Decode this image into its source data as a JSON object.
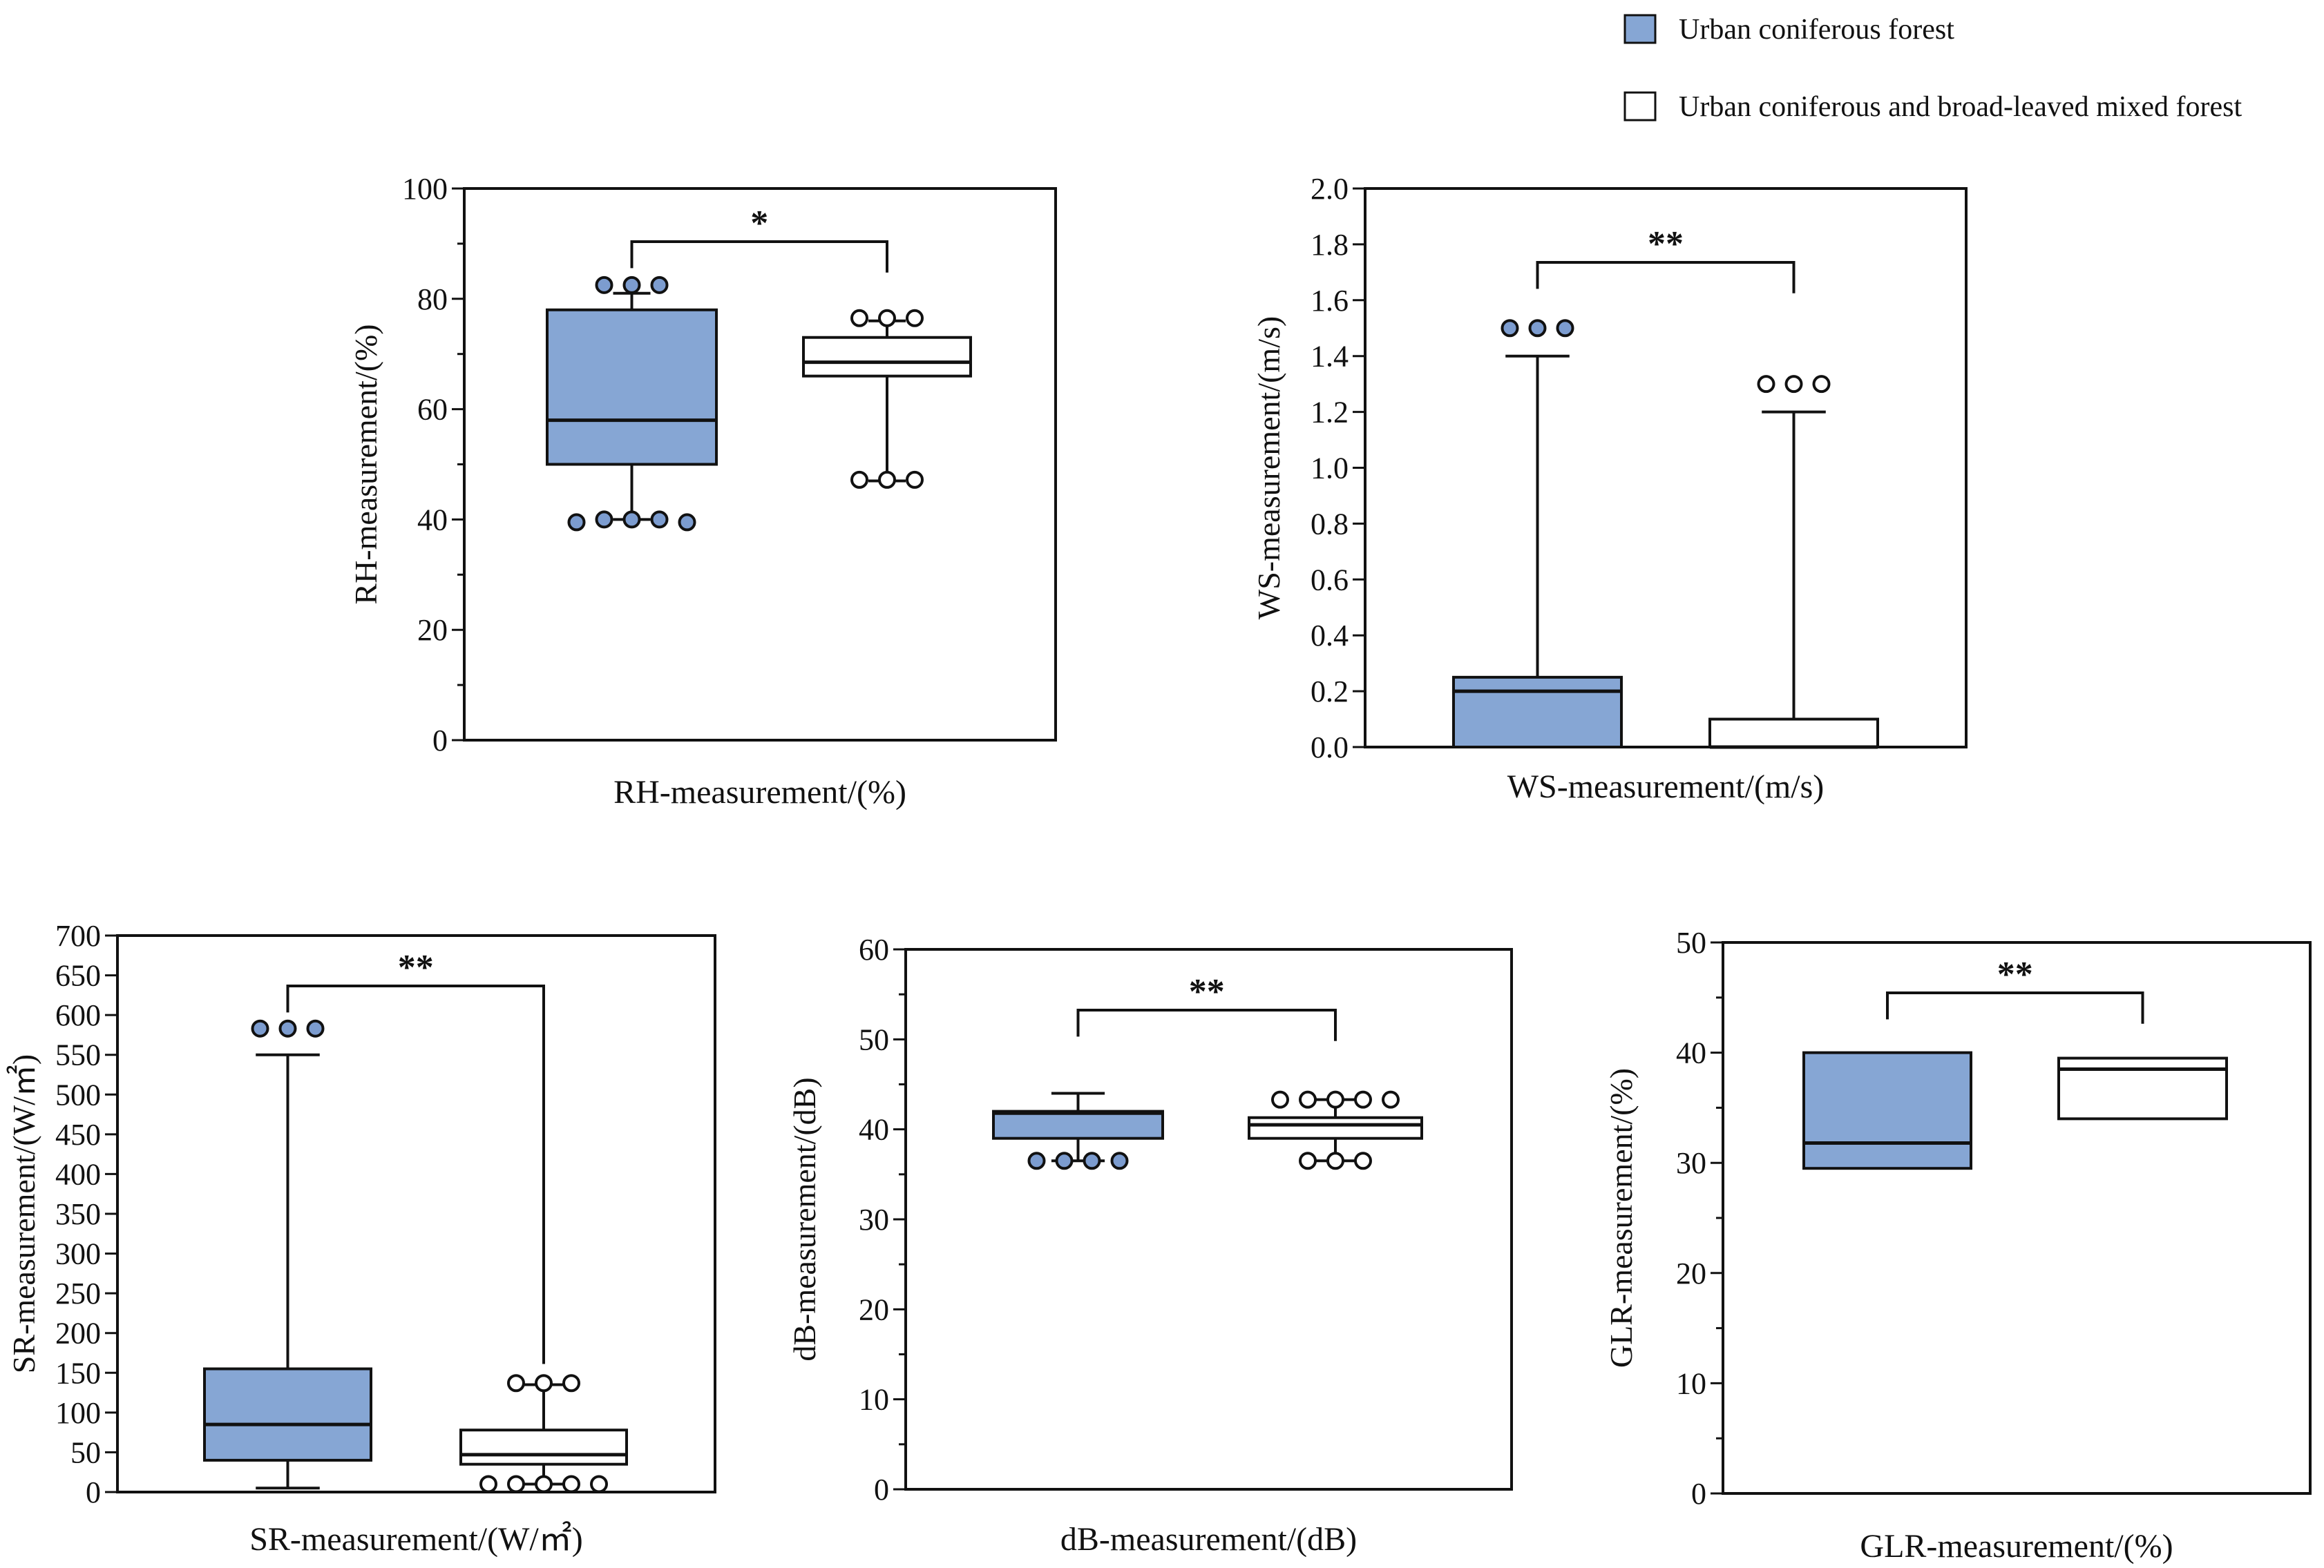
{
  "legend": {
    "items": [
      {
        "label": "Urban coniferous forest",
        "color": "#86a6d4"
      },
      {
        "label": "Urban coniferous and broad-leaved mixed forest",
        "color": "#ffffff"
      }
    ]
  },
  "colors": {
    "blue_fill": "#86a6d4",
    "blue_marker": "#7c9ccf",
    "stroke": "#111111"
  },
  "chart_data": [
    {
      "id": "rh",
      "type": "box",
      "title": "",
      "xlabel": "RH-measurement/(%)",
      "ylabel": "RH-measurement/(%)",
      "ylim": [
        0,
        100
      ],
      "ticks": [
        0,
        20,
        40,
        60,
        80,
        100
      ],
      "minor_step": 10,
      "tick_labels": [
        "0",
        "20",
        "40",
        "60",
        "80",
        "100"
      ],
      "significance": "*",
      "series": [
        {
          "name": "Urban coniferous forest",
          "q1": 50,
          "median": 58,
          "q3": 78,
          "whisker_low": 40,
          "whisker_high": 81,
          "outliers": [
            82.5,
            82.5,
            82.5,
            39.5,
            40,
            40,
            40,
            39.5
          ]
        },
        {
          "name": "Urban coniferous and broad-leaved mixed forest",
          "q1": 66,
          "median": 68.5,
          "q3": 73,
          "whisker_low": 47,
          "whisker_high": 76,
          "outliers": [
            76.5,
            76.5,
            76.5,
            47.2,
            47.2,
            47.2
          ]
        }
      ]
    },
    {
      "id": "ws",
      "type": "box",
      "title": "",
      "xlabel": "WS-measurement/(m/s)",
      "ylabel": "WS-measurement/(m/s)",
      "ylim": [
        0,
        2.0
      ],
      "ticks": [
        0,
        0.2,
        0.4,
        0.6,
        0.8,
        1.0,
        1.2,
        1.4,
        1.6,
        1.8,
        2.0
      ],
      "minor_step": 0,
      "tick_labels": [
        "0.0",
        "0.2",
        "0.4",
        "0.6",
        "0.8",
        "1.0",
        "1.2",
        "1.4",
        "1.6",
        "1.8",
        "2.0"
      ],
      "significance": "**",
      "series": [
        {
          "name": "Urban coniferous forest",
          "q1": 0,
          "median": 0.2,
          "q3": 0.25,
          "whisker_low": 0,
          "whisker_high": 1.4,
          "outliers": [
            1.5,
            1.5,
            1.5
          ]
        },
        {
          "name": "Urban coniferous and broad-leaved mixed forest",
          "q1": 0,
          "median": 0,
          "q3": 0.1,
          "whisker_low": 0,
          "whisker_high": 1.2,
          "outliers": [
            1.3,
            1.3,
            1.3
          ]
        }
      ]
    },
    {
      "id": "sr",
      "type": "box",
      "title": "",
      "xlabel": "SR-measurement/(W/㎡)",
      "ylabel": "SR-measurement/(W/㎡)",
      "ylim": [
        0,
        700
      ],
      "ticks": [
        0,
        50,
        100,
        150,
        200,
        250,
        300,
        350,
        400,
        450,
        500,
        550,
        600,
        650,
        700
      ],
      "minor_step": 0,
      "tick_labels": [
        "0",
        "50",
        "100",
        "150",
        "200",
        "250",
        "300",
        "350",
        "400",
        "450",
        "500",
        "550",
        "600",
        "650",
        "700"
      ],
      "significance": "**",
      "series": [
        {
          "name": "Urban coniferous forest",
          "q1": 40,
          "median": 85,
          "q3": 155,
          "whisker_low": 5,
          "whisker_high": 550,
          "outliers": [
            583,
            583,
            583
          ]
        },
        {
          "name": "Urban coniferous and broad-leaved mixed forest",
          "q1": 35,
          "median": 47,
          "q3": 78,
          "whisker_low": 10,
          "whisker_high": 135,
          "outliers": [
            137,
            137,
            137,
            10,
            10,
            10,
            10,
            10
          ]
        }
      ]
    },
    {
      "id": "db",
      "type": "box",
      "title": "",
      "xlabel": "dB-measurement/(dB)",
      "ylabel": "dB-measurement/(dB)",
      "ylim": [
        0,
        60
      ],
      "ticks": [
        0,
        10,
        20,
        30,
        40,
        50,
        60
      ],
      "minor_step": 5,
      "tick_labels": [
        "0",
        "10",
        "20",
        "30",
        "40",
        "50",
        "60"
      ],
      "significance": "**",
      "series": [
        {
          "name": "Urban coniferous forest",
          "q1": 39,
          "median": 41.8,
          "q3": 42,
          "whisker_low": 36.5,
          "whisker_high": 44,
          "outliers": [
            36.5,
            36.5,
            36.5,
            36.5
          ]
        },
        {
          "name": "Urban coniferous and broad-leaved mixed forest",
          "q1": 39,
          "median": 40.5,
          "q3": 41.3,
          "whisker_low": 36.5,
          "whisker_high": 43.3,
          "outliers": [
            43.3,
            43.3,
            43.3,
            43.3,
            43.3,
            36.5,
            36.5,
            36.5
          ]
        }
      ]
    },
    {
      "id": "glr",
      "type": "box",
      "title": "",
      "xlabel": "GLR-measurement/(%)",
      "ylabel": "GLR-measurement/(%)",
      "ylim": [
        0,
        50
      ],
      "ticks": [
        0,
        10,
        20,
        30,
        40,
        50
      ],
      "minor_step": 5,
      "tick_labels": [
        "0",
        "10",
        "20",
        "30",
        "40",
        "50"
      ],
      "significance": "**",
      "series": [
        {
          "name": "Urban coniferous forest",
          "q1": 29.5,
          "median": 31.8,
          "q3": 40,
          "whisker_low": 29.5,
          "whisker_high": 40,
          "outliers": []
        },
        {
          "name": "Urban coniferous and broad-leaved mixed forest",
          "q1": 34,
          "median": 38.5,
          "q3": 39.5,
          "whisker_low": 34,
          "whisker_high": 39.5,
          "outliers": []
        }
      ]
    }
  ]
}
